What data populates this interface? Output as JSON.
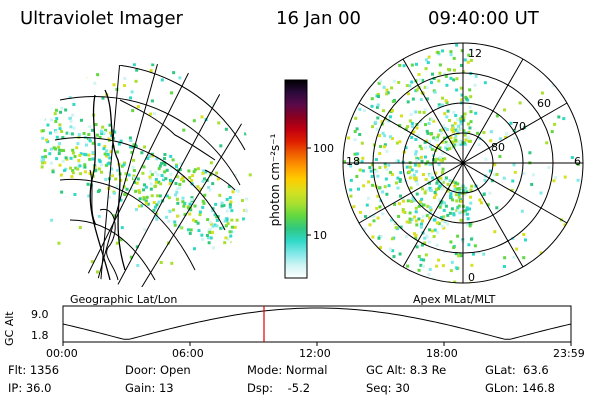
{
  "header": {
    "instrument": "Ultraviolet Imager",
    "date": "16 Jan 00",
    "time": "09:40:00 UT"
  },
  "colorbar": {
    "label": "photon cm⁻²s⁻¹",
    "ticks": [
      "100",
      "10"
    ],
    "colors": [
      "#000000",
      "#2a0a3a",
      "#5a0a4a",
      "#8a0020",
      "#c00010",
      "#e02000",
      "#f06000",
      "#ff9900",
      "#ffcc00",
      "#d8e020",
      "#a8e030",
      "#60d840",
      "#30c880",
      "#30d8c8",
      "#80e8e8",
      "#d0f4f4",
      "#ffffff"
    ]
  },
  "left_panel": {
    "caption": "Geographic Lat/Lon"
  },
  "right_panel": {
    "caption": "Apex MLat/MLT",
    "mlt_labels": {
      "top": "12",
      "right": "6",
      "bottom": "0",
      "left": "18"
    },
    "mlat_labels": [
      "60",
      "70",
      "80"
    ]
  },
  "timeline": {
    "ylabel": "GC Alt",
    "yticks": [
      "9.0",
      "1.8"
    ],
    "xticks": [
      "00:00",
      "06:00",
      "12:00",
      "18:00",
      "23:59"
    ],
    "marker_color": "#e00000"
  },
  "info": {
    "flt": "Flt: 1356",
    "ip": "IP: 36.0",
    "door": "Door: Open",
    "gain": "Gain: 13",
    "mode": "Mode: Normal",
    "dsp": "Dsp:    -5.2",
    "gcalt": "GC Alt: 8.3 Re",
    "seq": "Seq: 30",
    "glat": "GLat:  63.6",
    "glon": "GLon: 146.8"
  }
}
